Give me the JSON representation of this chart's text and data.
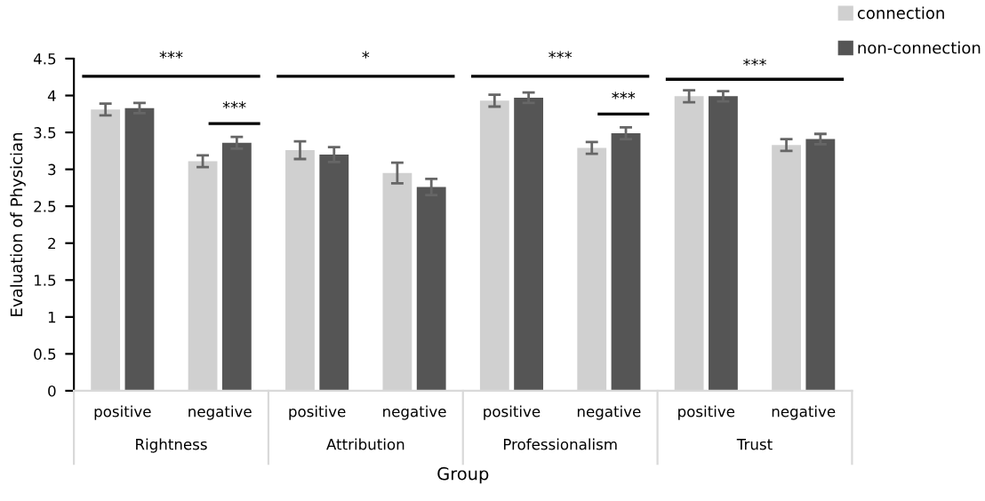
{
  "chart_data": {
    "type": "bar",
    "ylabel": "Evaluation of Physician",
    "xlabel": "Group",
    "categories": [
      "positive",
      "negative",
      "positive",
      "negative",
      "positive",
      "negative",
      "positive",
      "negative"
    ],
    "series": [
      {
        "name": "connection",
        "color": "#d0d0d0",
        "values": [
          3.81,
          3.11,
          3.26,
          2.95,
          3.93,
          3.29,
          3.99,
          3.33
        ],
        "errors": [
          0.08,
          0.08,
          0.12,
          0.14,
          0.08,
          0.08,
          0.08,
          0.08
        ]
      },
      {
        "name": "non-connection",
        "color": "#555555",
        "values": [
          3.83,
          3.36,
          3.2,
          2.76,
          3.97,
          3.49,
          3.99,
          3.41
        ],
        "errors": [
          0.07,
          0.08,
          0.1,
          0.11,
          0.07,
          0.08,
          0.07,
          0.07
        ]
      }
    ],
    "ylim": [
      0,
      4.5
    ],
    "yticks": [
      0,
      0.5,
      1,
      1.5,
      2,
      2.5,
      3,
      3.5,
      4,
      4.5
    ],
    "grid": false,
    "legend": "top right",
    "annotations": [
      "Rightness",
      "Attribution",
      "Professionalism",
      "Trust",
      "***",
      "***",
      "*",
      "***",
      "***",
      "***"
    ]
  }
}
